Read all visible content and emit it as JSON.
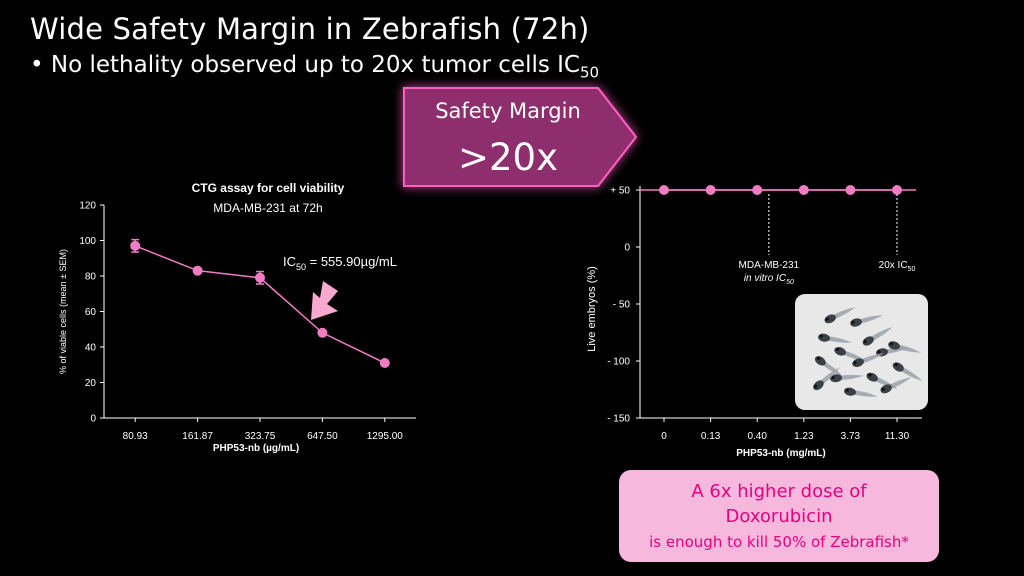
{
  "slide": {
    "title": "Wide Safety Margin in Zebrafish (72h)",
    "bullet_text": "No lethality observed up to 20x tumor cells IC",
    "bullet_sub": "50",
    "bullet_symbol": "•"
  },
  "banner": {
    "label": "Safety Margin",
    "value": ">20x",
    "color": "#8e2d6d"
  },
  "note": {
    "line1": "A 6x higher dose of",
    "line2": "Doxorubicin",
    "line3": "is enough to kill 50% of Zebrafish*",
    "bg_color": "#f6b8dc",
    "text_color": "#e6007e"
  },
  "image": {
    "icon": "zebrafish-embryos-photo"
  },
  "accent_color": "#f07cc4",
  "chart_data": [
    {
      "type": "line",
      "title": "CTG assay for cell viability",
      "subtitle": "MDA-MB-231 at 72h",
      "xlabel": "PHP53-nb (µg/mL)",
      "ylabel": "% of viable cells (mean ± SEM)",
      "categories": [
        "80.93",
        "161.87",
        "323.75",
        "647.50",
        "1295.00"
      ],
      "values": [
        97,
        83,
        79,
        48,
        31
      ],
      "errors": [
        3.5,
        0,
        3.5,
        0,
        0
      ],
      "ylim": [
        0,
        120
      ],
      "yticks": [
        0,
        20,
        40,
        60,
        80,
        100,
        120
      ],
      "grid": false,
      "annotation": {
        "prefix": "IC",
        "sub": "50",
        "text": " = 555.90µg/mL",
        "arrow_color": "#f9a8cf"
      }
    },
    {
      "type": "line",
      "xlabel": "PHP53-nb (mg/mL)",
      "ylabel": "Live embryos (%)",
      "categories": [
        "0",
        "0.13",
        "0.40",
        "1.23",
        "3.73",
        "11.30"
      ],
      "values": [
        50,
        50,
        50,
        50,
        50,
        50
      ],
      "ylim": [
        -150,
        50
      ],
      "yticks": [
        -150,
        -100,
        -50,
        0,
        50
      ],
      "ytick_labels": [
        "- 150",
        "- 100",
        "- 50",
        "0",
        "+ 50"
      ],
      "grid": false,
      "annotations": [
        {
          "line1": "MDA-MB-231",
          "line2": "in vitro IC",
          "line2_sub": "50",
          "x_index": 2,
          "x_offset": 0.25
        },
        {
          "line1": "20x IC",
          "line1_sub": "50",
          "x_index": 5
        }
      ]
    }
  ]
}
